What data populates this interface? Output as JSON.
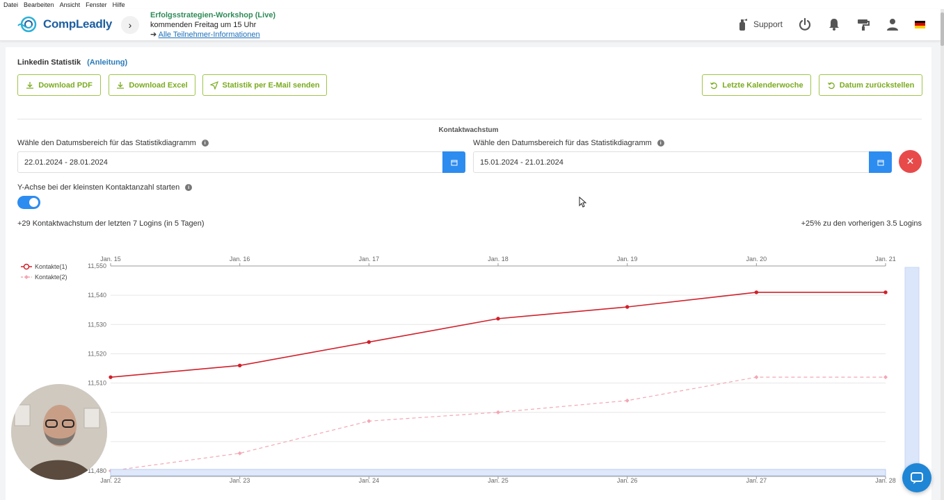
{
  "menubar": {
    "items": [
      "Datei",
      "Bearbeiten",
      "Ansicht",
      "Fenster",
      "Hilfe"
    ]
  },
  "brand": {
    "name": "CompLeadly"
  },
  "event": {
    "title": "Erfolgsstrategien-Workshop (Live)",
    "subtitle": "kommenden Freitag um 15 Uhr",
    "arrow": "➔",
    "link": "Alle Teilnehmer-Informationen"
  },
  "topbar": {
    "support_label": "Support"
  },
  "page": {
    "heading": "Linkedin Statistik",
    "heading_link": "(Anleitung)",
    "buttons": {
      "download_pdf": "Download PDF",
      "download_excel": "Download Excel",
      "email": "Statistik per E-Mail senden",
      "last_week": "Letzte Kalenderwoche",
      "reset": "Datum zurückstellen"
    },
    "section_title": "Kontaktwachstum",
    "range1": {
      "label": "Wähle den Datumsbereich für das Statistikdiagramm",
      "value": "22.01.2024 - 28.01.2024"
    },
    "range2": {
      "label": "Wähle den Datumsbereich für das Statistikdiagramm",
      "value": "15.01.2024 - 21.01.2024"
    },
    "toggle": {
      "label": "Y-Achse bei der kleinsten Kontaktanzahl starten",
      "on": true
    },
    "stat_left": "+29 Kontaktwachstum der letzten 7 Logins (in 5 Tagen)",
    "stat_right": "+25% zu den vorherigen 3.5 Logins"
  },
  "colors": {
    "accent_green": "#7aab1e",
    "primary_blue": "#2d8cf0",
    "danger_red": "#e84a4a",
    "series1": "#d0202a",
    "series2": "#f3a6b3"
  },
  "chart_data": {
    "type": "line",
    "x_top": [
      "Jan. 15",
      "Jan. 16",
      "Jan. 17",
      "Jan. 18",
      "Jan. 19",
      "Jan. 20",
      "Jan. 21"
    ],
    "x_bottom": [
      "Jan. 22",
      "Jan. 23",
      "Jan. 24",
      "Jan. 25",
      "Jan. 26",
      "Jan. 27",
      "Jan. 28"
    ],
    "y_ticks": [
      "11,550",
      "11,540",
      "11,530",
      "11,520",
      "11,510",
      "11,480"
    ],
    "ylim": [
      11480,
      11550
    ],
    "legend_position": "top-left",
    "series": [
      {
        "name": "Kontakte(1)",
        "values": [
          11512,
          11516,
          11524,
          11532,
          11536,
          11541,
          11541
        ]
      },
      {
        "name": "Kontakte(2)",
        "values": [
          11480,
          11486,
          11497,
          11500,
          11504,
          11512,
          11512
        ]
      }
    ]
  }
}
